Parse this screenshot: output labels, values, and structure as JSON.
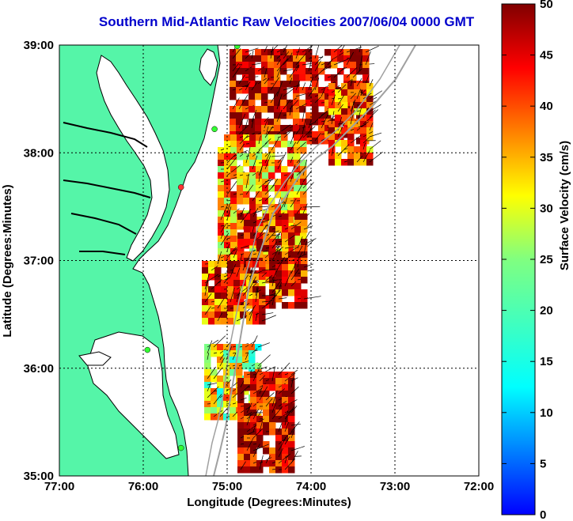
{
  "title": "Southern Mid-Atlantic Raw Velocities 2007/06/04 0000 GMT",
  "xlabel": "Longitude (Degrees:Minutes)",
  "ylabel": "Latitude (Degrees:Minutes)",
  "colorbar_label": "Surface Velocity (cm/s)",
  "xticks": [
    "77:00",
    "76:00",
    "75:00",
    "74:00",
    "73:00",
    "72:00"
  ],
  "yticks": [
    "39:00",
    "38:00",
    "37:00",
    "36:00",
    "35:00"
  ],
  "cticks": [
    "0",
    "5",
    "10",
    "15",
    "20",
    "25",
    "30",
    "35",
    "40",
    "45",
    "50"
  ],
  "colors": {
    "title": "#0000cc",
    "land": "#55f5a8",
    "grid": "#000000",
    "bathymetry": "#a0a0a0",
    "station": "#33ff33",
    "station_alt": "#ff3333"
  },
  "chart_data": {
    "type": "heatmap",
    "title": "Southern Mid-Atlantic Raw Velocities 2007/06/04 0000 GMT",
    "xlabel": "Longitude (Degrees:Minutes)",
    "ylabel": "Latitude (Degrees:Minutes)",
    "xlim": [
      -77,
      -72
    ],
    "ylim": [
      35,
      39
    ],
    "clim": [
      0,
      50
    ],
    "colormap": "jet",
    "grid": true,
    "stations": [
      {
        "lon": -74.88,
        "lat": 38.99,
        "color": "green"
      },
      {
        "lon": -75.15,
        "lat": 38.22,
        "color": "green"
      },
      {
        "lon": -75.55,
        "lat": 37.68,
        "color": "red"
      },
      {
        "lon": -75.95,
        "lat": 36.17,
        "color": "green"
      },
      {
        "lon": -75.55,
        "lat": 35.26,
        "color": "green"
      }
    ]
  }
}
